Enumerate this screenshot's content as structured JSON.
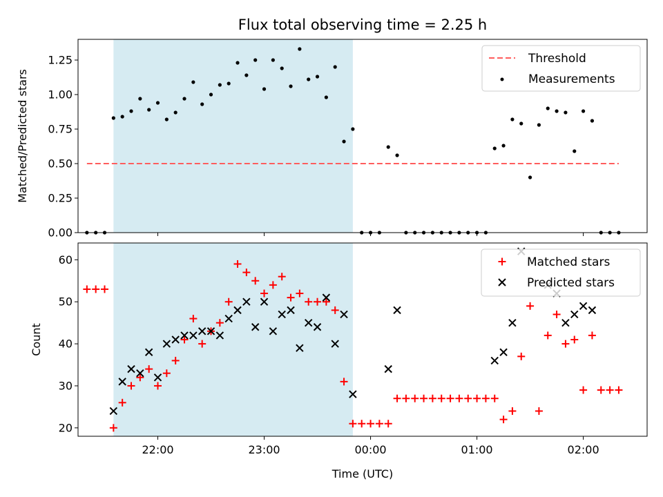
{
  "title": "Flux total observing time = 2.25 h",
  "colors": {
    "shade": "#add8e6",
    "threshold": "#ff5c5c",
    "measurement": "#000000",
    "matched": "#ff0000",
    "predicted": "#000000"
  },
  "chart_data": [
    {
      "type": "scatter",
      "ylabel": "Matched/Predicted stars",
      "xlim": [
        "21:15",
        "02:36"
      ],
      "ylim": [
        0,
        1.4
      ],
      "xticks": [
        "22:00",
        "23:00",
        "00:00",
        "01:00",
        "02:00"
      ],
      "yticks": [
        "0.00",
        "0.25",
        "0.50",
        "0.75",
        "1.00",
        "1.25"
      ],
      "yticks_values": [
        0,
        0.25,
        0.5,
        0.75,
        1.0,
        1.25
      ],
      "shaded_span": [
        "21:35",
        "23:50"
      ],
      "legend": {
        "position": "top-right",
        "threshold": "Threshold",
        "measurements": "Measurements"
      },
      "threshold": {
        "value": 0.5,
        "x_range": [
          "21:20",
          "02:20"
        ]
      },
      "measurements": {
        "time": [
          "21:20",
          "21:25",
          "21:30",
          "21:35",
          "21:40",
          "21:45",
          "21:50",
          "21:55",
          "22:00",
          "22:05",
          "22:10",
          "22:15",
          "22:20",
          "22:25",
          "22:30",
          "22:35",
          "22:40",
          "22:45",
          "22:50",
          "22:55",
          "23:00",
          "23:05",
          "23:10",
          "23:15",
          "23:20",
          "23:25",
          "23:30",
          "23:35",
          "23:40",
          "23:45",
          "23:50",
          "23:55",
          "24:00",
          "24:05",
          "24:10",
          "24:15",
          "24:20",
          "24:25",
          "24:30",
          "24:35",
          "24:40",
          "24:45",
          "24:50",
          "24:55",
          "25:00",
          "25:05",
          "25:10",
          "25:15",
          "25:20",
          "25:25",
          "25:30",
          "25:35",
          "25:40",
          "25:45",
          "25:50",
          "25:55",
          "26:00",
          "26:05",
          "26:10",
          "26:15",
          "26:20"
        ],
        "ratio": [
          0,
          0,
          0,
          0.83,
          0.84,
          0.88,
          0.97,
          0.89,
          0.94,
          0.82,
          0.87,
          0.97,
          1.09,
          0.93,
          1.0,
          1.07,
          1.08,
          1.23,
          1.14,
          1.25,
          1.04,
          1.25,
          1.19,
          1.06,
          1.33,
          1.11,
          1.13,
          0.98,
          1.2,
          0.66,
          0.75,
          0,
          0,
          0,
          0.62,
          0.56,
          0,
          0,
          0,
          0,
          0,
          0,
          0,
          0,
          0,
          0,
          0.61,
          0.63,
          0.82,
          0.79,
          0.4,
          0.78,
          0.9,
          0.88,
          0.87,
          0.59,
          0.88,
          0.81,
          0,
          0,
          0
        ]
      }
    },
    {
      "type": "scatter",
      "xlabel": "Time (UTC)",
      "ylabel": "Count",
      "xlim": [
        "21:15",
        "02:36"
      ],
      "ylim": [
        18,
        64
      ],
      "xticks": [
        "22:00",
        "23:00",
        "00:00",
        "01:00",
        "02:00"
      ],
      "yticks": [
        "20",
        "30",
        "40",
        "50",
        "60"
      ],
      "yticks_values": [
        20,
        30,
        40,
        50,
        60
      ],
      "shaded_span": [
        "21:35",
        "23:50"
      ],
      "legend": {
        "position": "top-right"
      },
      "series": [
        {
          "name": "Matched stars",
          "marker": "+",
          "time": [
            "21:20",
            "21:25",
            "21:30",
            "21:35",
            "21:40",
            "21:45",
            "21:50",
            "21:55",
            "22:00",
            "22:05",
            "22:10",
            "22:15",
            "22:20",
            "22:25",
            "22:30",
            "22:35",
            "22:40",
            "22:45",
            "22:50",
            "22:55",
            "23:00",
            "23:05",
            "23:10",
            "23:15",
            "23:20",
            "23:25",
            "23:30",
            "23:35",
            "23:40",
            "23:45",
            "23:50",
            "23:55",
            "24:00",
            "24:05",
            "24:10",
            "24:15",
            "24:20",
            "24:25",
            "24:30",
            "24:35",
            "24:40",
            "24:45",
            "24:50",
            "24:55",
            "25:00",
            "25:05",
            "25:10",
            "25:15",
            "25:20",
            "25:25",
            "25:30",
            "25:35",
            "25:40",
            "25:45",
            "25:50",
            "25:55",
            "26:00",
            "26:05",
            "26:10",
            "26:15",
            "26:20"
          ],
          "values": [
            53,
            53,
            53,
            20,
            26,
            30,
            32,
            34,
            30,
            33,
            36,
            41,
            46,
            40,
            43,
            45,
            50,
            59,
            57,
            55,
            52,
            54,
            56,
            51,
            52,
            50,
            50,
            50,
            48,
            31,
            21,
            21,
            21,
            21,
            21,
            27,
            27,
            27,
            27,
            27,
            27,
            27,
            27,
            27,
            27,
            27,
            27,
            22,
            24,
            37,
            49,
            24,
            42,
            47,
            40,
            41,
            29,
            42,
            29,
            29,
            29
          ]
        },
        {
          "name": "Predicted stars",
          "marker": "x",
          "time": [
            "21:35",
            "21:40",
            "21:45",
            "21:50",
            "21:55",
            "22:00",
            "22:05",
            "22:10",
            "22:15",
            "22:20",
            "22:25",
            "22:30",
            "22:35",
            "22:40",
            "22:45",
            "22:50",
            "22:55",
            "23:00",
            "23:05",
            "23:10",
            "23:15",
            "23:20",
            "23:25",
            "23:30",
            "23:35",
            "23:40",
            "23:45",
            "23:50",
            "24:10",
            "24:15",
            "25:10",
            "25:15",
            "25:20",
            "25:25",
            "25:40",
            "25:45",
            "25:50",
            "25:55",
            "26:00",
            "26:05"
          ],
          "values": [
            24,
            31,
            34,
            33,
            38,
            32,
            40,
            41,
            42,
            42,
            43,
            43,
            42,
            46,
            48,
            50,
            44,
            50,
            43,
            47,
            48,
            39,
            45,
            44,
            51,
            40,
            47,
            28,
            34,
            48,
            36,
            38,
            45,
            62,
            54,
            52,
            45,
            47,
            49,
            48
          ]
        }
      ]
    }
  ]
}
